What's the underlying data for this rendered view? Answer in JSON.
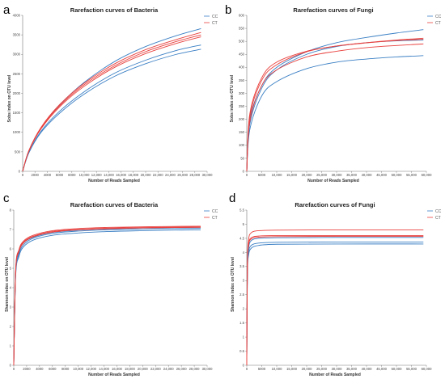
{
  "colors": {
    "CC": "#3a7fc4",
    "CT": "#e8413e",
    "axis": "#777777"
  },
  "chart_data": [
    {
      "panel": "a",
      "type": "line",
      "title": "Rarefaction curves of Bacteria",
      "xlabel": "Number of Reads Sampled",
      "ylabel": "Sobs index on OTU level",
      "xlim": [
        0,
        30000
      ],
      "ylim": [
        0,
        4000
      ],
      "xticks": [
        0,
        2000,
        4000,
        6000,
        8000,
        10000,
        12000,
        14000,
        16000,
        18000,
        20000,
        22000,
        24000,
        26000,
        28000,
        30000
      ],
      "xtick_labels": [
        "0",
        "2000",
        "4000",
        "6000",
        "8000",
        "10,000",
        "12,000",
        "14,000",
        "16,000",
        "18,000",
        "20,000",
        "22,000",
        "24,000",
        "26,000",
        "28,000",
        "30,000"
      ],
      "yticks": [
        0,
        500,
        1000,
        1500,
        2000,
        2500,
        3000,
        3500,
        4000
      ],
      "ytick_labels": [
        "0",
        "500",
        "1000",
        "1500",
        "2000",
        "2500",
        "3000",
        "3500",
        "4000"
      ],
      "legend": [
        "CC",
        "CT"
      ],
      "legend_position": "top-right",
      "series": [
        {
          "group": "CC",
          "x": [
            0,
            1000,
            3000,
            6000,
            10000,
            15000,
            20000,
            25000,
            29000
          ],
          "y": [
            0,
            520,
            1120,
            1700,
            2280,
            2820,
            3200,
            3480,
            3660
          ]
        },
        {
          "group": "CC",
          "x": [
            0,
            1000,
            3000,
            6000,
            10000,
            15000,
            20000,
            25000,
            29000
          ],
          "y": [
            0,
            480,
            1030,
            1540,
            2040,
            2520,
            2850,
            3100,
            3240
          ]
        },
        {
          "group": "CC",
          "x": [
            0,
            1000,
            3000,
            6000,
            10000,
            15000,
            20000,
            25000,
            29000
          ],
          "y": [
            0,
            470,
            1000,
            1490,
            1980,
            2440,
            2760,
            3000,
            3130
          ]
        },
        {
          "group": "CT",
          "x": [
            0,
            1000,
            3000,
            6000,
            10000,
            15000,
            20000,
            25000,
            29000
          ],
          "y": [
            0,
            530,
            1130,
            1710,
            2260,
            2760,
            3120,
            3380,
            3560
          ]
        },
        {
          "group": "CT",
          "x": [
            0,
            1000,
            3000,
            6000,
            10000,
            15000,
            20000,
            25000,
            29000
          ],
          "y": [
            0,
            520,
            1110,
            1680,
            2220,
            2710,
            3070,
            3330,
            3500
          ]
        },
        {
          "group": "CT",
          "x": [
            0,
            1000,
            3000,
            6000,
            10000,
            15000,
            20000,
            25000,
            29000
          ],
          "y": [
            0,
            510,
            1090,
            1650,
            2180,
            2670,
            3020,
            3280,
            3450
          ]
        }
      ]
    },
    {
      "panel": "b",
      "type": "line",
      "title": "Rarefaction curves of Fungi",
      "xlabel": "Number of Reads Sampled",
      "ylabel": "Sobs index on OTU level",
      "xlim": [
        0,
        60000
      ],
      "ylim": [
        0,
        600
      ],
      "xticks": [
        0,
        5000,
        10000,
        15000,
        20000,
        25000,
        30000,
        35000,
        40000,
        45000,
        50000,
        55000,
        60000
      ],
      "xtick_labels": [
        "0",
        "5000",
        "10,000",
        "15,000",
        "20,000",
        "25,000",
        "30,000",
        "35,000",
        "40,000",
        "45,000",
        "50,000",
        "55,000",
        "60,000"
      ],
      "yticks": [
        0,
        50,
        100,
        150,
        200,
        250,
        300,
        350,
        400,
        450,
        500,
        550,
        600
      ],
      "ytick_labels": [
        "0",
        "50",
        "100",
        "150",
        "200",
        "250",
        "300",
        "350",
        "400",
        "450",
        "500",
        "550",
        "600"
      ],
      "legend": [
        "CC",
        "CT"
      ],
      "legend_position": "top-right",
      "series": [
        {
          "group": "CC",
          "x": [
            0,
            1000,
            5000,
            10000,
            20000,
            30000,
            40000,
            50000,
            59000
          ],
          "y": [
            0,
            200,
            330,
            400,
            460,
            495,
            515,
            532,
            545
          ]
        },
        {
          "group": "CC",
          "x": [
            0,
            1000,
            5000,
            10000,
            20000,
            30000,
            40000,
            50000,
            59000
          ],
          "y": [
            0,
            160,
            290,
            345,
            395,
            420,
            432,
            440,
            445
          ]
        },
        {
          "group": "CC",
          "x": [
            0,
            1000,
            5000,
            10000,
            20000,
            30000,
            40000,
            50000,
            59000
          ],
          "y": [
            0,
            180,
            320,
            390,
            450,
            480,
            495,
            502,
            505
          ]
        },
        {
          "group": "CT",
          "x": [
            0,
            1000,
            5000,
            10000,
            20000,
            30000,
            40000,
            50000,
            59000
          ],
          "y": [
            0,
            220,
            360,
            420,
            462,
            482,
            494,
            503,
            508
          ]
        },
        {
          "group": "CT",
          "x": [
            0,
            1000,
            5000,
            10000,
            20000,
            30000,
            40000,
            50000,
            59000
          ],
          "y": [
            0,
            210,
            350,
            410,
            460,
            482,
            495,
            505,
            512
          ]
        },
        {
          "group": "CT",
          "x": [
            0,
            1000,
            5000,
            10000,
            20000,
            30000,
            40000,
            50000,
            59000
          ],
          "y": [
            0,
            190,
            330,
            390,
            440,
            462,
            476,
            484,
            490
          ]
        }
      ]
    },
    {
      "panel": "c",
      "type": "line",
      "title": "Rarefaction curves of Bacteria",
      "xlabel": "Number of Reads Sampled",
      "ylabel": "Shannon index on OTU level",
      "xlim": [
        0,
        30000
      ],
      "ylim": [
        0,
        8
      ],
      "xticks": [
        0,
        2000,
        4000,
        6000,
        8000,
        10000,
        12000,
        14000,
        16000,
        18000,
        20000,
        22000,
        24000,
        26000,
        28000,
        30000
      ],
      "xtick_labels": [
        "0",
        "2000",
        "4000",
        "6000",
        "8000",
        "10,000",
        "12,000",
        "14,000",
        "16,000",
        "18,000",
        "20,000",
        "22,000",
        "24,000",
        "26,000",
        "28,000",
        "30,000"
      ],
      "yticks": [
        0,
        1,
        2,
        3,
        4,
        5,
        6,
        7,
        8
      ],
      "ytick_labels": [
        "0",
        "1",
        "2",
        "3",
        "4",
        "5",
        "6",
        "7",
        "8"
      ],
      "legend": [
        "CC",
        "CT"
      ],
      "legend_position": "top-right",
      "series": [
        {
          "group": "CC",
          "x": [
            0,
            300,
            800,
            1500,
            3000,
            6000,
            10000,
            15000,
            20000,
            25000,
            29000
          ],
          "y": [
            0,
            4.6,
            5.6,
            6.1,
            6.45,
            6.7,
            6.82,
            6.9,
            6.94,
            6.97,
            6.98
          ]
        },
        {
          "group": "CC",
          "x": [
            0,
            300,
            800,
            1500,
            3000,
            6000,
            10000,
            15000,
            20000,
            25000,
            29000
          ],
          "y": [
            0,
            4.7,
            5.7,
            6.2,
            6.55,
            6.8,
            6.92,
            6.99,
            7.03,
            7.05,
            7.06
          ]
        },
        {
          "group": "CC",
          "x": [
            0,
            300,
            800,
            1500,
            3000,
            6000,
            10000,
            15000,
            20000,
            25000,
            29000
          ],
          "y": [
            0,
            4.8,
            5.8,
            6.3,
            6.6,
            6.85,
            6.97,
            7.04,
            7.08,
            7.1,
            7.11
          ]
        },
        {
          "group": "CT",
          "x": [
            0,
            300,
            800,
            1500,
            3000,
            6000,
            10000,
            15000,
            20000,
            25000,
            29000
          ],
          "y": [
            0,
            4.9,
            5.9,
            6.35,
            6.65,
            6.9,
            7.0,
            7.07,
            7.1,
            7.12,
            7.13
          ]
        },
        {
          "group": "CT",
          "x": [
            0,
            300,
            800,
            1500,
            3000,
            6000,
            10000,
            15000,
            20000,
            25000,
            29000
          ],
          "y": [
            0,
            4.95,
            5.95,
            6.4,
            6.7,
            6.94,
            7.05,
            7.11,
            7.14,
            7.16,
            7.17
          ]
        },
        {
          "group": "CT",
          "x": [
            0,
            300,
            800,
            1500,
            3000,
            6000,
            10000,
            15000,
            20000,
            25000,
            29000
          ],
          "y": [
            0,
            4.85,
            5.85,
            6.3,
            6.62,
            6.86,
            6.98,
            7.04,
            7.08,
            7.1,
            7.11
          ]
        }
      ]
    },
    {
      "panel": "d",
      "type": "line",
      "title": "Rarefaction curves of Fungi",
      "xlabel": "Number of Reads Sampled",
      "ylabel": "Shannon index on OTU level",
      "xlim": [
        0,
        60000
      ],
      "ylim": [
        0,
        5.5
      ],
      "xticks": [
        0,
        5000,
        10000,
        15000,
        20000,
        25000,
        30000,
        35000,
        40000,
        45000,
        50000,
        55000,
        60000
      ],
      "xtick_labels": [
        "0",
        "5000",
        "10,000",
        "15,000",
        "20,000",
        "25,000",
        "30,000",
        "35,000",
        "40,000",
        "45,000",
        "50,000",
        "55,000",
        "60,000"
      ],
      "yticks": [
        0,
        0.5,
        1,
        1.5,
        2,
        2.5,
        3,
        3.5,
        4,
        4.5,
        5,
        5.5
      ],
      "ytick_labels": [
        "0",
        "0.5",
        "1",
        "1.5",
        "2",
        "2.5",
        "3",
        "3.5",
        "4",
        "4.5",
        "5",
        "5.5"
      ],
      "legend": [
        "CC",
        "CT"
      ],
      "legend_position": "top-right",
      "series": [
        {
          "group": "CC",
          "x": [
            0,
            200,
            600,
            1500,
            4000,
            10000,
            30000,
            59000
          ],
          "y": [
            0,
            3.2,
            3.9,
            4.15,
            4.25,
            4.29,
            4.3,
            4.3
          ]
        },
        {
          "group": "CC",
          "x": [
            0,
            200,
            600,
            1500,
            4000,
            10000,
            30000,
            59000
          ],
          "y": [
            0,
            3.3,
            4.0,
            4.25,
            4.33,
            4.36,
            4.37,
            4.37
          ]
        },
        {
          "group": "CC",
          "x": [
            0,
            200,
            600,
            1500,
            4000,
            10000,
            30000,
            59000
          ],
          "y": [
            0,
            3.4,
            4.15,
            4.42,
            4.5,
            4.52,
            4.53,
            4.53
          ]
        },
        {
          "group": "CT",
          "x": [
            0,
            200,
            600,
            1500,
            4000,
            10000,
            30000,
            59000
          ],
          "y": [
            0,
            3.6,
            4.45,
            4.7,
            4.77,
            4.79,
            4.8,
            4.8
          ]
        },
        {
          "group": "CT",
          "x": [
            0,
            200,
            600,
            1500,
            4000,
            10000,
            30000,
            59000
          ],
          "y": [
            0,
            3.5,
            4.3,
            4.52,
            4.58,
            4.6,
            4.6,
            4.6
          ]
        },
        {
          "group": "CT",
          "x": [
            0,
            200,
            600,
            1500,
            4000,
            10000,
            30000,
            59000
          ],
          "y": [
            0,
            3.45,
            4.25,
            4.48,
            4.54,
            4.56,
            4.57,
            4.57
          ]
        }
      ]
    }
  ]
}
